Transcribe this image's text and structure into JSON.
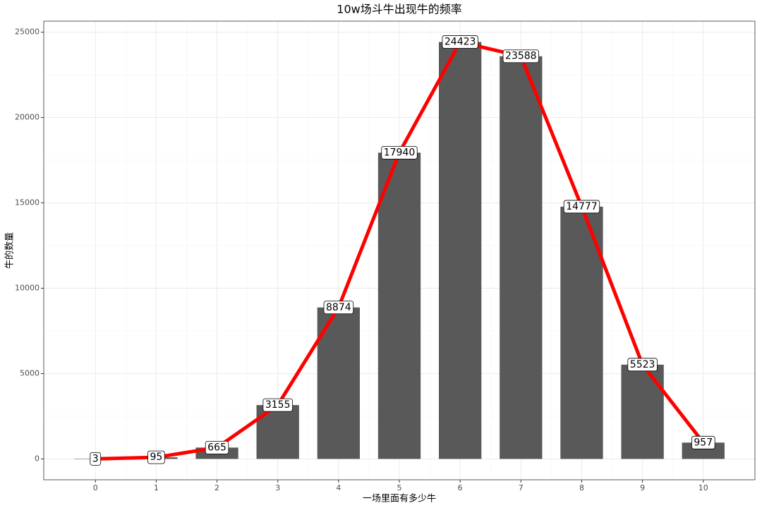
{
  "chart_data": {
    "type": "bar",
    "title": "10w场斗牛出现牛的频率",
    "x_label": "一场里面有多少牛",
    "y_label": "牛的数量",
    "x": [
      0,
      1,
      2,
      3,
      4,
      5,
      6,
      7,
      8,
      9,
      10
    ],
    "values": [
      3,
      95,
      665,
      3155,
      8874,
      17940,
      24423,
      23588,
      14777,
      5523,
      957
    ],
    "color": "#595959",
    "line_color": "#ff0000",
    "xlim": [
      -0.85,
      10.85
    ],
    "xticks": [
      0,
      1,
      2,
      3,
      4,
      5,
      6,
      7,
      8,
      9,
      10
    ],
    "ylim": [
      -1221,
      25644
    ],
    "yticks": [
      0,
      5000,
      10000,
      15000,
      20000,
      25000
    ],
    "grid": true
  }
}
